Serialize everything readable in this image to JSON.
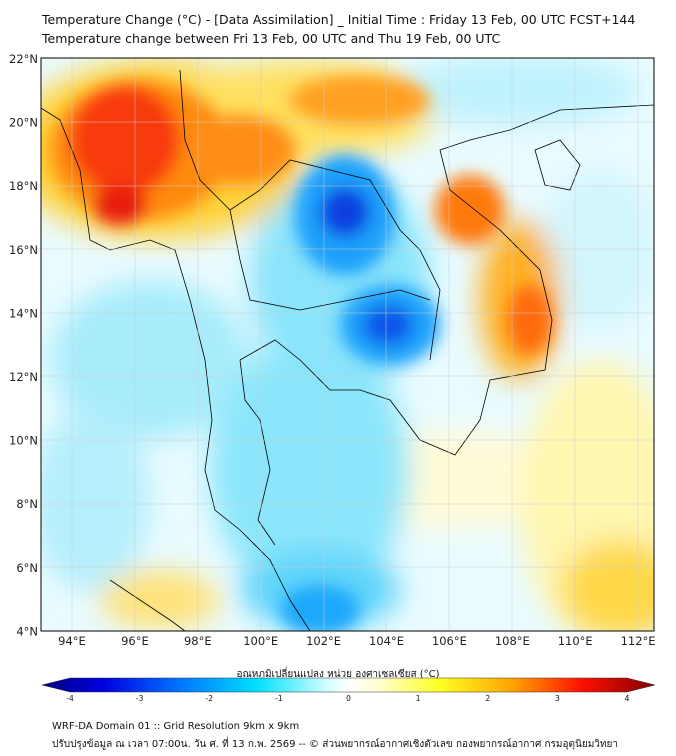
{
  "title": {
    "line1": "Temperature Change (°C) - [Data Assimilation] _ Initial Time : Friday 13 Feb, 00 UTC FCST+144",
    "line2": "Temperature change between Fri 13 Feb, 00 UTC and Thu 19 Feb, 00 UTC"
  },
  "map": {
    "lat_labels": [
      "22°N",
      "20°N",
      "18°N",
      "16°N",
      "14°N",
      "12°N",
      "10°N",
      "8°N",
      "6°N",
      "4°N"
    ],
    "lon_labels": [
      "94°E",
      "96°E",
      "98°E",
      "100°E",
      "102°E",
      "104°E",
      "106°E",
      "108°E",
      "110°E",
      "112°E"
    ]
  },
  "colorbar": {
    "label": "อุณหภูมิเปลี่ยนแปลง หน่วย องศาเซลเซียส (°C)",
    "ticks": [
      "-4",
      "-3",
      "-2",
      "-1",
      "0",
      "1",
      "2",
      "3",
      "4"
    ],
    "range": [
      -4,
      4
    ]
  },
  "footer": {
    "line1": "WRF-DA Domain 01 :: Grid Resolution 9km x 9km",
    "line2": "ปรับปรุงข้อมูล ณ เวลา 07:00น. วัน ศ. ที่ 13 ก.พ. 2569 -- © ส่วนพยากรณ์อากาศเชิงตัวเลข กองพยากรณ์อากาศ กรมอุตุนิยมวิทยา"
  }
}
